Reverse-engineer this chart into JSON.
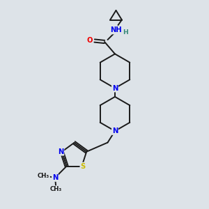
{
  "bg_color": "#dde3e8",
  "bond_color": "#1a1a1a",
  "atom_colors": {
    "N": "#0000ee",
    "O": "#ee0000",
    "S": "#ccbb00",
    "H": "#3a8a7a",
    "C": "#1a1a1a"
  },
  "font_size": 7.2,
  "bond_width": 1.4,
  "figsize": [
    3.0,
    3.0
  ],
  "dpi": 100,
  "xlim": [
    0,
    10
  ],
  "ylim": [
    0,
    10
  ]
}
